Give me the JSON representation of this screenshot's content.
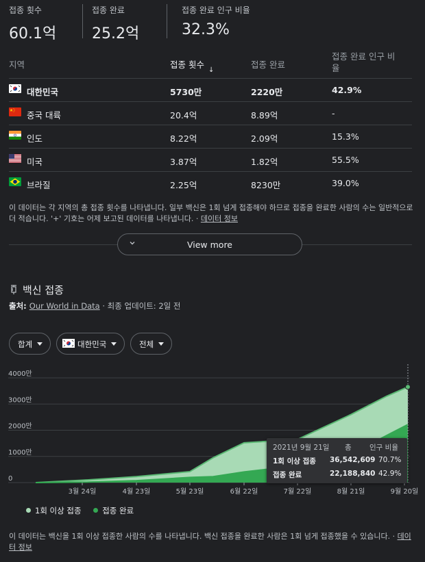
{
  "stats": [
    {
      "label": "접종 횟수",
      "value": "60.1억"
    },
    {
      "label": "접종 완료",
      "value": "25.2억"
    },
    {
      "label": "접종 완료 인구 비율",
      "value": "32.3%"
    }
  ],
  "table": {
    "headers": {
      "region": "지역",
      "doses": "접종 횟수",
      "sort_arrow": "↓",
      "completed": "접종 완료",
      "pct_line1": "접종 완료 인구 비",
      "pct_line2": "율"
    },
    "rows": [
      {
        "flag": "kr-flag-icon",
        "name": "대한민국",
        "doses": "5730만",
        "completed": "2220만",
        "pct": "42.9%",
        "bold": true
      },
      {
        "flag": "cn-flag-icon",
        "name": "중국 대륙",
        "doses": "20.4억",
        "completed": "8.89억",
        "pct": "-"
      },
      {
        "flag": "in-flag-icon",
        "name": "인도",
        "doses": "8.22억",
        "completed": "2.09억",
        "pct": "15.3%"
      },
      {
        "flag": "us-flag-icon",
        "name": "미국",
        "doses": "3.87억",
        "completed": "1.82억",
        "pct": "55.5%"
      },
      {
        "flag": "br-flag-icon",
        "name": "브라질",
        "doses": "2.25억",
        "completed": "8230만",
        "pct": "39.0%"
      }
    ]
  },
  "note1": {
    "text": "이 데이터는 각 지역의 총 접종 횟수를 나타냅니다. 일부 백신은 1회 넘게 접종해야 하므로 접종을 완료한 사람의 수는 일반적으로 더 적습니다. '+' 기호는 어제 보고된 데이터를 나타냅니다. · ",
    "link": "데이터 정보"
  },
  "view_more": {
    "label": "View more",
    "icon": "chevron-down-icon"
  },
  "section": {
    "title": "백신 접종",
    "icon": "syringe-icon"
  },
  "source": {
    "prefix": "출처: ",
    "link": "Our World in Data",
    "suffix": " · ",
    "updated_label": "최종 업데이트:",
    "updated_value": " 2일 전"
  },
  "filters": {
    "metric": "합계",
    "region": "대한민국",
    "scope": "전체"
  },
  "chart_data": {
    "type": "area",
    "yticks": [
      "0",
      "1000만",
      "2000만",
      "3000만",
      "4000만"
    ],
    "ylim": [
      0,
      40000000
    ],
    "xticks": [
      "3월 24일",
      "4월 23일",
      "5월 23일",
      "6월 22일",
      "7월 22일",
      "8월 21일",
      "9월 20일"
    ],
    "x": [
      "2월 26일",
      "3월 24일",
      "4월 23일",
      "5월 23일",
      "6월 5일",
      "6월 22일",
      "7월 22일",
      "8월 21일",
      "9월 10일",
      "9월 21일"
    ],
    "series": [
      {
        "name": "1회 이상 접종",
        "color": "#81c995",
        "values": [
          0,
          900000,
          2300000,
          4200000,
          9500000,
          15200000,
          16500000,
          26000000,
          33000000,
          36542609
        ]
      },
      {
        "name": "접종 완료",
        "color": "#34a853",
        "values": [
          0,
          150000,
          750000,
          2000000,
          2300000,
          4100000,
          6400000,
          10800000,
          18000000,
          22188840
        ]
      }
    ],
    "legend_position": "bottom-left"
  },
  "tooltip": {
    "date": "2021년 9월 21일",
    "col_total": "총",
    "col_pct": "인구 비율",
    "rows": [
      {
        "label": "1회 이상 접종",
        "total": "36,542,609",
        "pct": "70.7%"
      },
      {
        "label": "접종 완료",
        "total": "22,188,840",
        "pct": "42.9%"
      }
    ]
  },
  "legend": [
    {
      "label": "1회 이상 접종",
      "color": "#a8dab5"
    },
    {
      "label": "접종 완료",
      "color": "#34a853"
    }
  ],
  "note2": {
    "text": "이 데이터는 백신을 1회 이상 접종한 사람의 수를 나타냅니다. 백신 접종을 완료한 사람은 1회 넘게 접종했을 수 있습니다. · ",
    "link": "데이터 정보"
  }
}
